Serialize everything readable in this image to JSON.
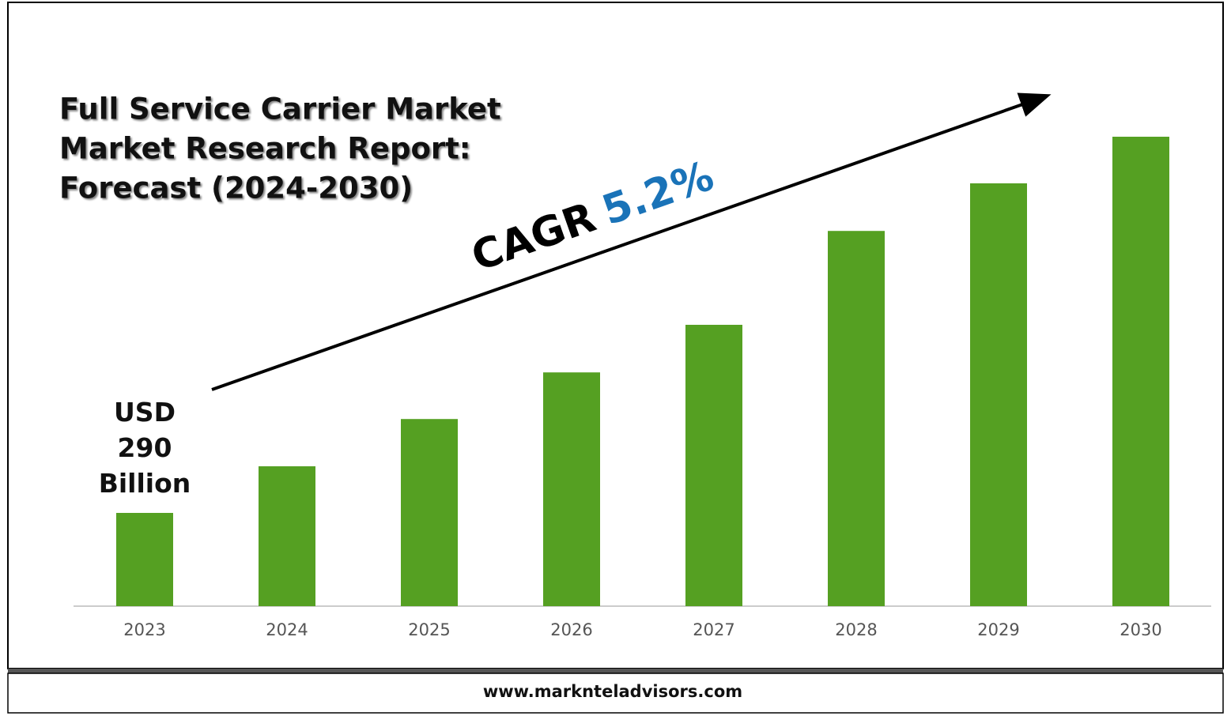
{
  "chart_data": {
    "type": "bar",
    "title_lines": [
      "Full Service Carrier Market",
      "Market Research Report:",
      "Forecast (2024-2030)"
    ],
    "categories": [
      "2023",
      "2024",
      "2025",
      "2026",
      "2027",
      "2028",
      "2029",
      "2030"
    ],
    "values": [
      290,
      435,
      582,
      727,
      875,
      1167,
      1315,
      1460
    ],
    "value_labels": [
      "USD 290 Billion",
      null,
      null,
      null,
      null,
      null,
      null,
      null
    ],
    "color": "#55a022",
    "annotations": [
      "CAGR",
      "5.2%"
    ],
    "annotation_colors": [
      "#000000",
      "#1a73b8"
    ],
    "footer": "www.marknteladvisors.com"
  }
}
